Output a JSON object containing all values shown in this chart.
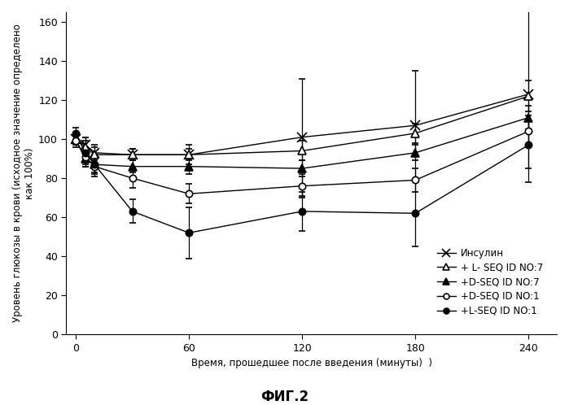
{
  "title": "ФИГ.2",
  "xlabel": "Время, прошедшее после введения (минуты)  )",
  "ylabel": "Уровень глюкозы в крови (исходное значение определено\nкак 100%)",
  "xlim": [
    -5,
    255
  ],
  "ylim": [
    0,
    165
  ],
  "yticks": [
    0,
    20,
    40,
    60,
    80,
    100,
    120,
    140,
    160
  ],
  "xticks": [
    0,
    60,
    120,
    180,
    240
  ],
  "series": [
    {
      "label": "Инсулин",
      "x": [
        0,
        5,
        10,
        30,
        60,
        120,
        180,
        240
      ],
      "y": [
        100,
        97,
        93,
        92,
        92,
        101,
        107,
        123
      ],
      "yerr": [
        3,
        4,
        4,
        3,
        3,
        30,
        28,
        45
      ],
      "marker": "x",
      "marker_size": 8,
      "color": "#000000",
      "linestyle": "-",
      "fillstyle": "full"
    },
    {
      "label": "+ L- SEQ ID NO:7",
      "x": [
        0,
        5,
        10,
        30,
        60,
        120,
        180,
        240
      ],
      "y": [
        100,
        96,
        92,
        92,
        92,
        94,
        103,
        122
      ],
      "yerr": [
        3,
        5,
        4,
        3,
        5,
        5,
        5,
        8
      ],
      "marker": "^",
      "marker_size": 7,
      "color": "#000000",
      "linestyle": "-",
      "fillstyle": "none"
    },
    {
      "label": "+D-SEQ ID NO:7",
      "x": [
        0,
        5,
        10,
        30,
        60,
        120,
        180,
        240
      ],
      "y": [
        100,
        90,
        87,
        86,
        86,
        85,
        93,
        111
      ],
      "yerr": [
        3,
        4,
        4,
        3,
        4,
        4,
        4,
        6
      ],
      "marker": "^",
      "marker_size": 7,
      "color": "#000000",
      "linestyle": "-",
      "fillstyle": "full"
    },
    {
      "label": "+D-SEQ ID NO:1",
      "x": [
        0,
        5,
        10,
        30,
        60,
        120,
        180,
        240
      ],
      "y": [
        99,
        91,
        86,
        80,
        72,
        76,
        79,
        104
      ],
      "yerr": [
        3,
        5,
        5,
        5,
        5,
        6,
        6,
        8
      ],
      "marker": "o",
      "marker_size": 6,
      "color": "#000000",
      "linestyle": "-",
      "fillstyle": "none"
    },
    {
      "label": "+L-SEQ ID NO:1",
      "x": [
        0,
        5,
        10,
        30,
        60,
        120,
        180,
        240
      ],
      "y": [
        103,
        93,
        87,
        63,
        52,
        63,
        62,
        97
      ],
      "yerr": [
        3,
        6,
        5,
        6,
        13,
        10,
        17,
        12
      ],
      "marker": "o",
      "marker_size": 6,
      "color": "#000000",
      "linestyle": "-",
      "fillstyle": "full"
    }
  ],
  "background_color": "#ffffff",
  "title_fontsize": 12,
  "axis_fontsize": 8.5,
  "tick_fontsize": 9,
  "legend_fontsize": 8.5
}
